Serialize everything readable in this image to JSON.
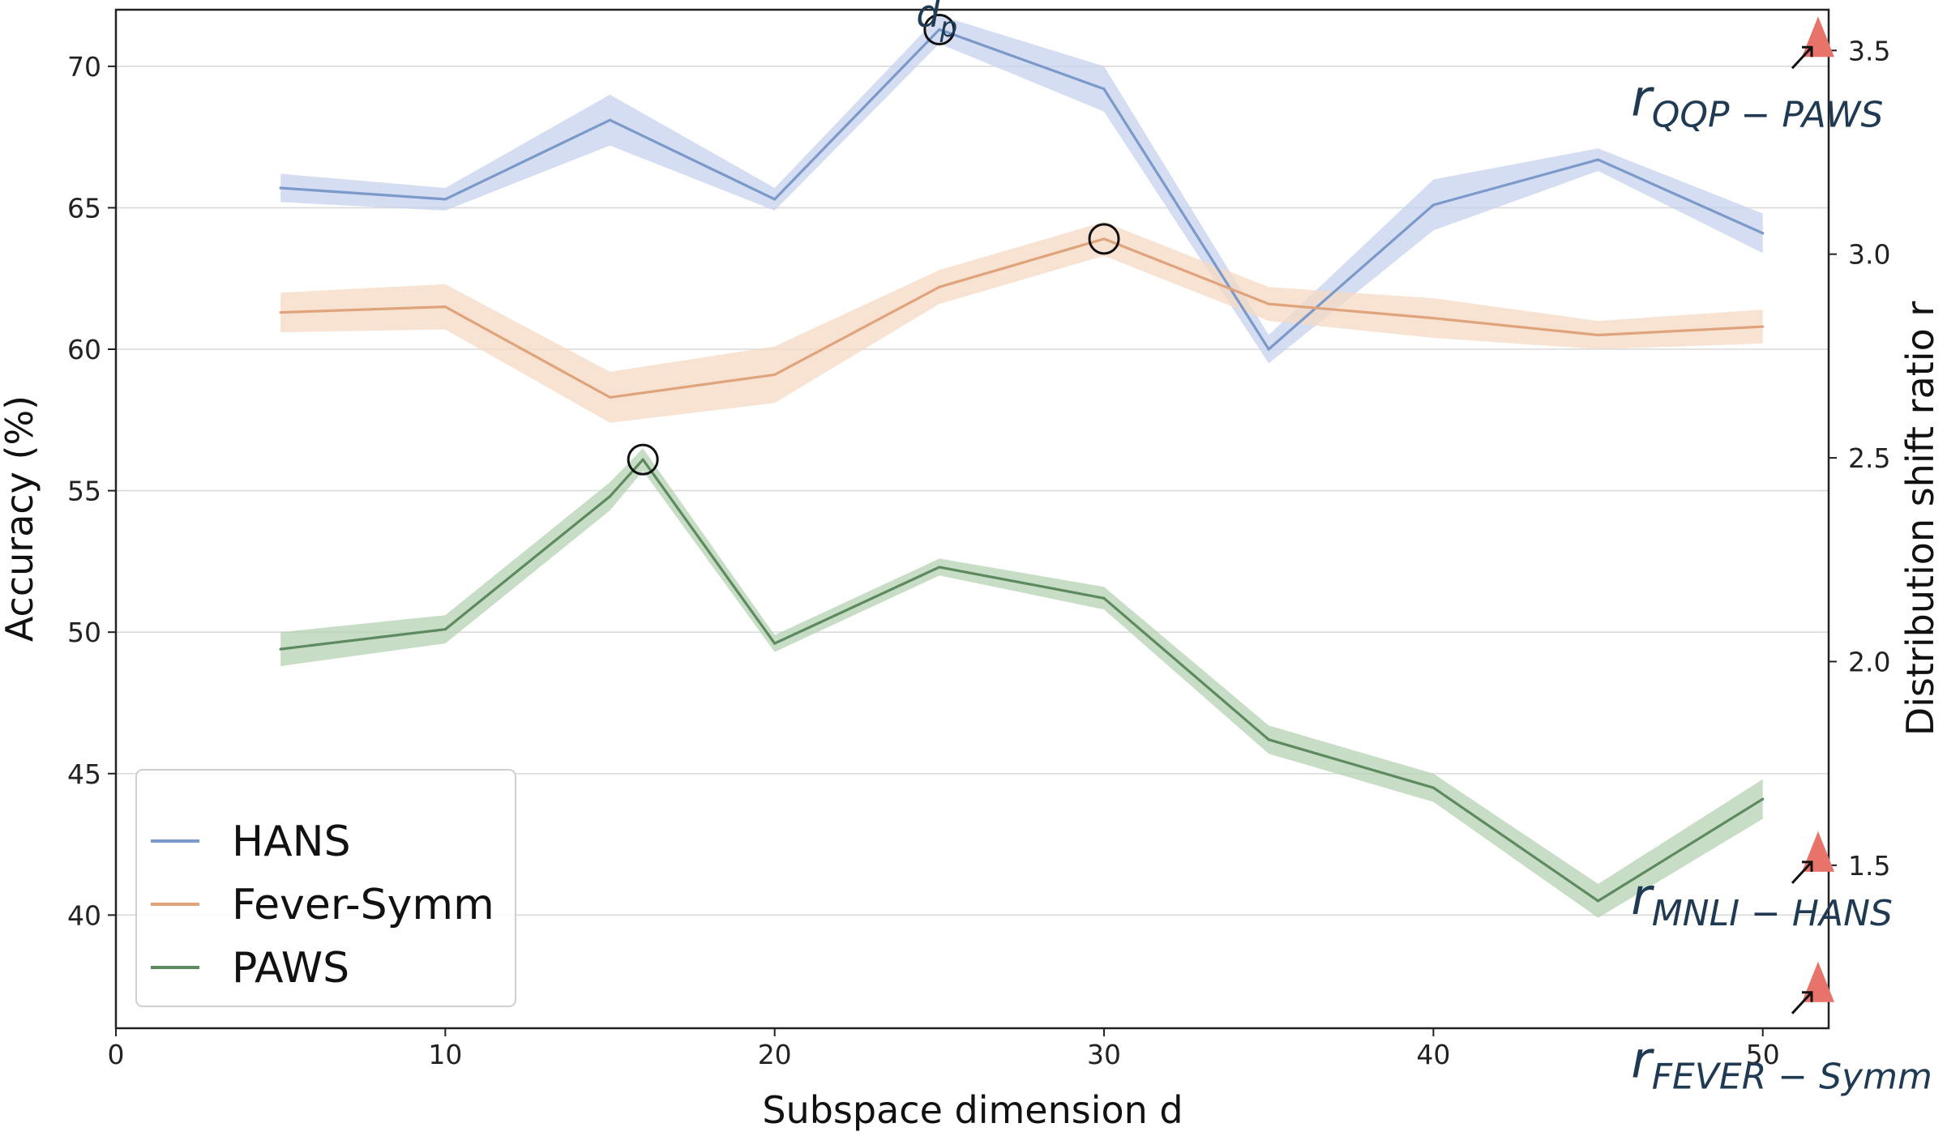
{
  "chart_data": {
    "type": "line",
    "title": "",
    "xlabel": "Subspace dimension d",
    "ylabel": "Accuracy (%)",
    "y2label": "Distribution shift ratio r",
    "xlim": [
      0,
      52
    ],
    "ylim": [
      36,
      72
    ],
    "y2lim": [
      1.1,
      3.6
    ],
    "xticks": [
      0,
      10,
      20,
      30,
      40,
      50
    ],
    "xtick_labels": [
      "0",
      "10",
      "20",
      "30",
      "40",
      "50"
    ],
    "yticks": [
      40,
      45,
      50,
      55,
      60,
      65,
      70
    ],
    "ytick_labels": [
      "40",
      "45",
      "50",
      "55",
      "60",
      "65",
      "70"
    ],
    "y2ticks": [
      1.5,
      2.0,
      2.5,
      3.0,
      3.5
    ],
    "y2tick_labels": [
      "1.5",
      "2.0",
      "2.5",
      "3.0",
      "3.5"
    ],
    "grid": "horizontal",
    "legend_position": "lower-left",
    "series": [
      {
        "name": "HANS",
        "color": "#7b99c9",
        "band_color": "#c5d2ee",
        "x": [
          5,
          10,
          15,
          20,
          25,
          30,
          35,
          40,
          45,
          50
        ],
        "values": [
          65.7,
          65.3,
          68.1,
          65.3,
          71.3,
          69.2,
          60.0,
          65.1,
          66.7,
          64.1
        ],
        "band": [
          0.5,
          0.4,
          0.9,
          0.4,
          0.5,
          0.8,
          0.5,
          0.9,
          0.4,
          0.7
        ]
      },
      {
        "name": "Fever-Symm",
        "color": "#e0a47c",
        "band_color": "#f6d9c4",
        "x": [
          5,
          10,
          15,
          20,
          25,
          30,
          35,
          40,
          45,
          50
        ],
        "values": [
          61.3,
          61.5,
          58.3,
          59.1,
          62.2,
          63.9,
          61.6,
          61.1,
          60.5,
          60.8
        ],
        "band": [
          0.7,
          0.8,
          0.9,
          1.0,
          0.6,
          0.6,
          0.6,
          0.7,
          0.5,
          0.6
        ]
      },
      {
        "name": "PAWS",
        "color": "#5d8a5f",
        "band_color": "#b5d1b2",
        "x": [
          5,
          10,
          15,
          16,
          20,
          25,
          30,
          35,
          40,
          45,
          50
        ],
        "values": [
          49.4,
          50.1,
          54.8,
          56.1,
          49.6,
          52.3,
          51.2,
          46.2,
          44.5,
          40.5,
          44.1
        ],
        "band": [
          0.6,
          0.5,
          0.5,
          0.4,
          0.3,
          0.3,
          0.4,
          0.5,
          0.5,
          0.6,
          0.7
        ]
      }
    ],
    "circled_points": [
      {
        "series": "HANS",
        "x": 25,
        "y": 71.3
      },
      {
        "series": "Fever-Symm",
        "x": 30,
        "y": 63.9
      },
      {
        "series": "PAWS",
        "x": 16,
        "y": 56.1
      }
    ],
    "annotations": [
      {
        "text": "d",
        "subscript": "p",
        "x": 24.3,
        "y": 71.4,
        "axis": "left",
        "size": "medium"
      },
      {
        "text": "r",
        "subscript": "QQP − PAWS",
        "x": 46.0,
        "y2": 3.34,
        "axis": "right",
        "size": "large"
      },
      {
        "text": "r",
        "subscript": "MNLI − HANS",
        "x": 46.0,
        "y2": 1.38,
        "axis": "right",
        "size": "large"
      },
      {
        "text": "r",
        "subscript": "FEVER − Symm",
        "x": 46.0,
        "y2": 0.98,
        "axis": "right",
        "size": "large"
      }
    ],
    "ratio_markers": [
      {
        "label": "QQP-PAWS",
        "y2": 3.5,
        "color": "#e8736a"
      },
      {
        "label": "MNLI-HANS",
        "y2": 1.5,
        "color": "#e8736a"
      },
      {
        "label": "FEVER-Symm",
        "y2": 1.18,
        "color": "#e8736a"
      }
    ]
  }
}
